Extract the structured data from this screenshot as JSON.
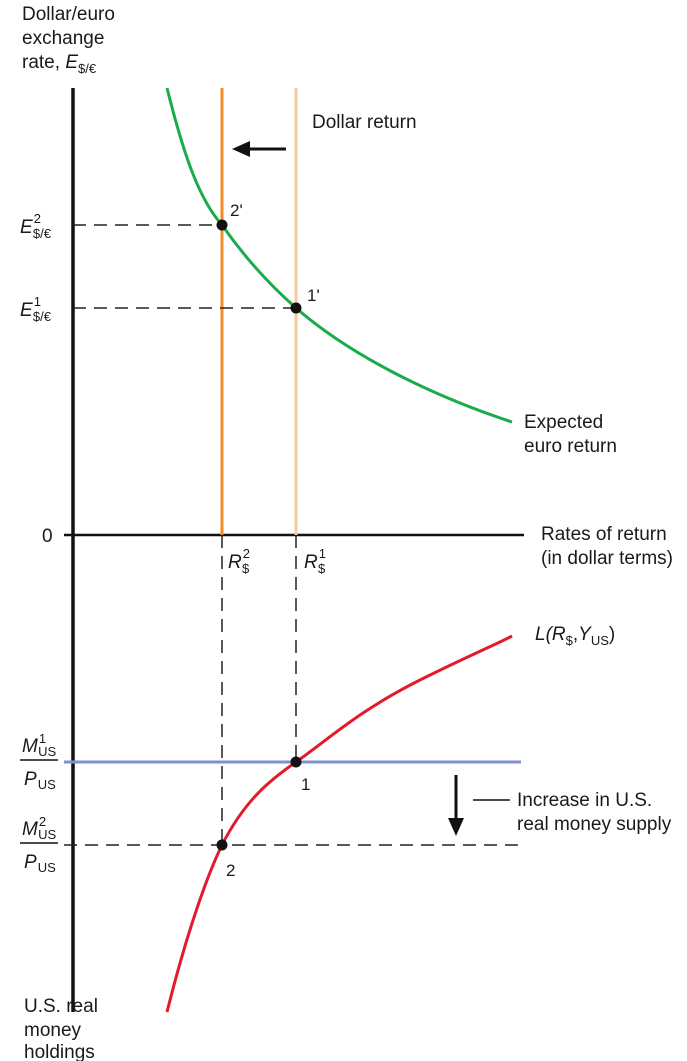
{
  "figure": {
    "y_axis_title": [
      "Dollar/euro",
      "exchange",
      "rate, "
    ],
    "y_axis_symbol": {
      "base": "E",
      "subscript": "$/€"
    },
    "x_axis_title": [
      "Rates of return",
      "(in dollar terms)"
    ],
    "bottom_axis_title": [
      "U.S. real",
      "money",
      "holdings"
    ],
    "origin_label": "0",
    "curves": {
      "dollar_return_label": "Dollar return",
      "euro_return_label": [
        "Expected",
        "euro return"
      ],
      "money_demand_label": {
        "L": "L(",
        "R": "R",
        "R_sub": "$",
        "comma": ",",
        "Y": "Y",
        "Y_sub": "US",
        "close": ")"
      },
      "money_supply_change_label": [
        "Increase in U.S.",
        "real money supply"
      ]
    },
    "exchange_rate_levels": [
      {
        "base": "E",
        "sup": "2",
        "sub": "$/€"
      },
      {
        "base": "E",
        "sup": "1",
        "sub": "$/€"
      }
    ],
    "interest_rate_levels": [
      {
        "base": "R",
        "sup": "2",
        "sub": "$"
      },
      {
        "base": "R",
        "sup": "1",
        "sub": "$"
      }
    ],
    "money_supply_levels": [
      {
        "num_base": "M",
        "num_sup": "1",
        "num_sub": "US",
        "den_base": "P",
        "den_sub": "US"
      },
      {
        "num_base": "M",
        "num_sup": "2",
        "num_sub": "US",
        "den_base": "P",
        "den_sub": "US"
      }
    ],
    "points": {
      "p1_upper": "1'",
      "p2_upper": "2'",
      "p1_lower": "1",
      "p2_lower": "2"
    },
    "colors": {
      "dollar_return_new": "#f28c28",
      "dollar_return_old": "#f7c79a",
      "euro_return": "#1aab4b",
      "money_demand": "#e21b2c",
      "money_supply": "#7f8fd0",
      "axes": "#111111"
    }
  }
}
